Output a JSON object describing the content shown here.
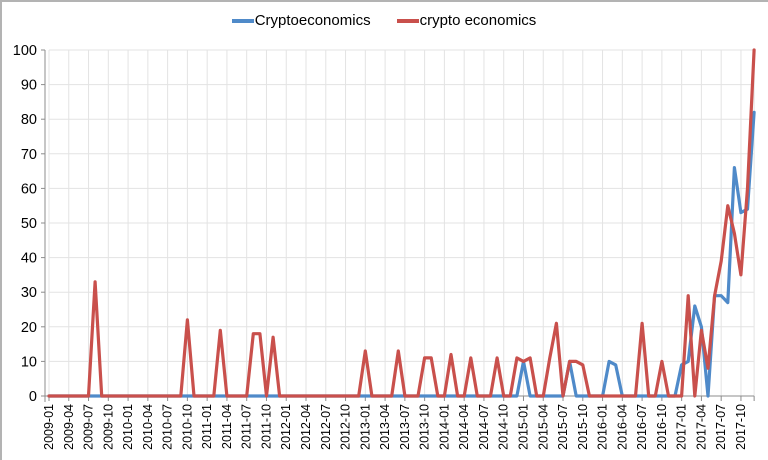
{
  "chart_data": {
    "type": "line",
    "title": "",
    "xlabel": "",
    "ylabel": "",
    "ylim": [
      0,
      100
    ],
    "yticks": [
      0,
      10,
      20,
      30,
      40,
      50,
      60,
      70,
      80,
      90,
      100
    ],
    "grid": true,
    "legend_position": "top",
    "x_tick_labels": [
      "2009-01",
      "2009-04",
      "2009-07",
      "2009-10",
      "2010-01",
      "2010-04",
      "2010-07",
      "2010-10",
      "2011-01",
      "2011-04",
      "2011-07",
      "2011-10",
      "2012-01",
      "2012-04",
      "2012-07",
      "2012-10",
      "2013-01",
      "2013-04",
      "2013-07",
      "2013-10",
      "2014-01",
      "2014-04",
      "2014-07",
      "2014-10",
      "2015-01",
      "2015-04",
      "2015-07",
      "2015-10",
      "2016-01",
      "2016-04",
      "2016-07",
      "2016-10",
      "2017-01",
      "2017-04",
      "2017-07",
      "2017-10"
    ],
    "x_start": "2009-01",
    "x_end": "2017-12",
    "frequency": "monthly",
    "series": [
      {
        "name": "Cryptoeconomics",
        "color": "#4f8ac9",
        "values": [
          0,
          0,
          0,
          0,
          0,
          0,
          0,
          0,
          0,
          0,
          0,
          0,
          0,
          0,
          0,
          0,
          0,
          0,
          0,
          0,
          0,
          0,
          0,
          0,
          0,
          0,
          0,
          0,
          0,
          0,
          0,
          0,
          0,
          0,
          0,
          0,
          0,
          0,
          0,
          0,
          0,
          0,
          0,
          0,
          0,
          0,
          0,
          0,
          0,
          0,
          0,
          0,
          0,
          0,
          0,
          0,
          0,
          0,
          0,
          0,
          0,
          0,
          0,
          0,
          0,
          0,
          0,
          0,
          0,
          0,
          0,
          0,
          10,
          0,
          0,
          0,
          0,
          0,
          0,
          10,
          0,
          0,
          0,
          0,
          0,
          10,
          9,
          0,
          0,
          0,
          0,
          0,
          0,
          0,
          0,
          0,
          9,
          10,
          26,
          20,
          0,
          29,
          29,
          27,
          66,
          53,
          54,
          82
        ]
      },
      {
        "name": "crypto economics",
        "color": "#c9504c",
        "values": [
          0,
          0,
          0,
          0,
          0,
          0,
          0,
          33,
          0,
          0,
          0,
          0,
          0,
          0,
          0,
          0,
          0,
          0,
          0,
          0,
          0,
          22,
          0,
          0,
          0,
          0,
          19,
          0,
          0,
          0,
          0,
          18,
          18,
          0,
          17,
          0,
          0,
          0,
          0,
          0,
          0,
          0,
          0,
          0,
          0,
          0,
          0,
          0,
          13,
          0,
          0,
          0,
          0,
          13,
          0,
          0,
          0,
          11,
          11,
          0,
          0,
          12,
          0,
          0,
          11,
          0,
          0,
          0,
          11,
          0,
          0,
          11,
          10,
          11,
          0,
          0,
          11,
          21,
          0,
          10,
          10,
          9,
          0,
          0,
          0,
          0,
          0,
          0,
          0,
          0,
          21,
          0,
          0,
          10,
          0,
          0,
          0,
          29,
          0,
          19,
          8,
          29,
          39,
          55,
          47,
          35,
          60,
          100
        ]
      }
    ]
  }
}
